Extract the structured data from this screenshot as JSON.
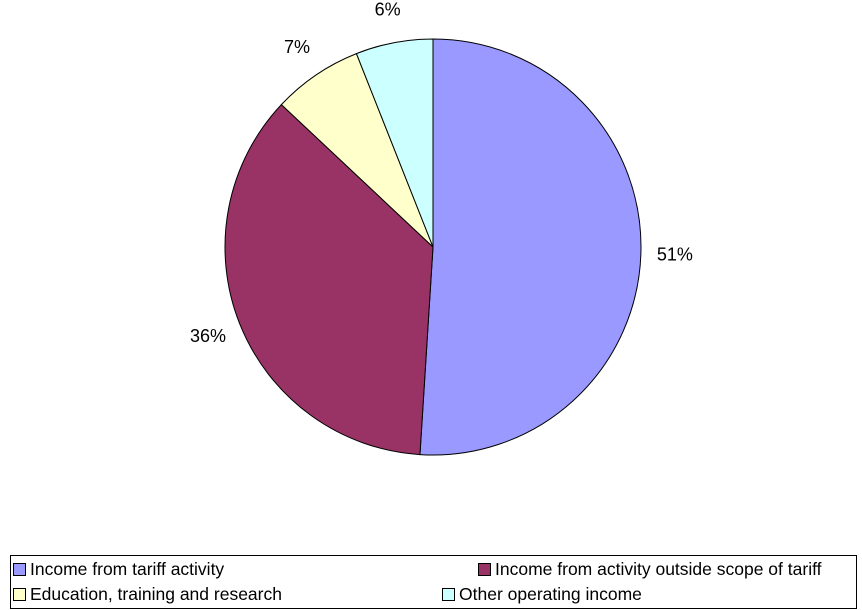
{
  "chart_data": {
    "type": "pie",
    "categories": [
      "Income from tariff activity",
      "Income from activity outside scope of tariff",
      "Education, training and research",
      "Other operating income"
    ],
    "values": [
      51,
      36,
      7,
      6
    ],
    "labels": [
      "51%",
      "36%",
      "7%",
      "6%"
    ],
    "colors": [
      "#9999ff",
      "#993366",
      "#ffffcc",
      "#ccffff"
    ],
    "start_angle": "12 o'clock",
    "direction": "clockwise",
    "legend_position": "bottom"
  }
}
